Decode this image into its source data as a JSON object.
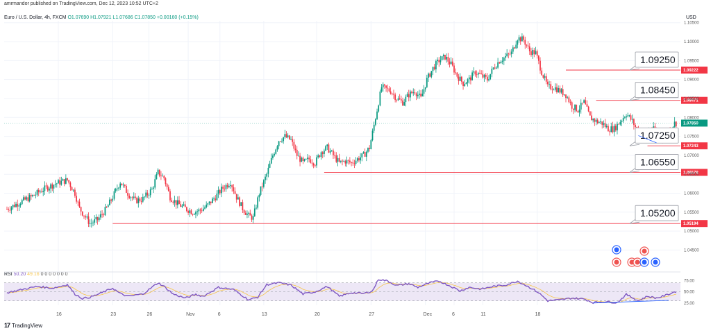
{
  "header": {
    "published": "amrmandor published on TradingView.com, Dec 12, 2023 10:52 UTC+2",
    "symbol": "Euro / U.S. Dollar, 4h, FXCM",
    "ohlc": "O1.07690 H1.07921 L1.07686 C1.07850 +0.00160 (+0.15%)",
    "currency": "USD"
  },
  "rsi_header": {
    "name": "RSI",
    "value": "50.20",
    "ma": "49.16",
    "zeros": "0 0 0 0 0 0 0"
  },
  "brand": {
    "logo": "17",
    "name": "TradingView"
  },
  "colors": {
    "up": "#089981",
    "down": "#f23645",
    "level_line": "#f23645",
    "rsi_line": "#7e57c2",
    "rsi_ma": "#f7c548",
    "divergence": "#2962ff",
    "rsi_band": "#ede7f6"
  },
  "chart_data": [
    {
      "type": "candlestick",
      "title": "Euro / U.S. Dollar, 4h, FXCM",
      "ylim": [
        1.0405,
        1.1055
      ],
      "y_ticks": [
        "1.10500",
        "1.10000",
        "1.09500",
        "1.09000",
        "1.08500",
        "1.08000",
        "1.07500",
        "1.07000",
        "1.06500",
        "1.06000",
        "1.05500",
        "1.05000",
        "1.04500"
      ],
      "x_ticks": [
        "16",
        "23",
        "26",
        "Nov",
        "6",
        "13",
        "20",
        "27",
        "Dec",
        "6",
        "11",
        "18"
      ],
      "close_path": [
        [
          0,
          1.0558
        ],
        [
          8,
          1.0575
        ],
        [
          16,
          1.059
        ],
        [
          24,
          1.061
        ],
        [
          32,
          1.0625
        ],
        [
          40,
          1.0635
        ],
        [
          45,
          1.06
        ],
        [
          48,
          1.056
        ],
        [
          55,
          1.052
        ],
        [
          60,
          1.053
        ],
        [
          66,
          1.056
        ],
        [
          70,
          1.059
        ],
        [
          75,
          1.063
        ],
        [
          80,
          1.06
        ],
        [
          85,
          1.058
        ],
        [
          90,
          1.0585
        ],
        [
          96,
          1.061
        ],
        [
          100,
          1.0655
        ],
        [
          104,
          1.064
        ],
        [
          108,
          1.059
        ],
        [
          112,
          1.0575
        ],
        [
          118,
          1.056
        ],
        [
          123,
          1.055
        ],
        [
          128,
          1.0555
        ],
        [
          132,
          1.0565
        ],
        [
          138,
          1.059
        ],
        [
          142,
          1.061
        ],
        [
          148,
          1.063
        ],
        [
          152,
          1.059
        ],
        [
          156,
          1.056
        ],
        [
          160,
          1.054
        ],
        [
          163,
          1.0535
        ],
        [
          167,
          1.06
        ],
        [
          172,
          1.065
        ],
        [
          176,
          1.07
        ],
        [
          180,
          1.074
        ],
        [
          184,
          1.075
        ],
        [
          188,
          1.074
        ],
        [
          192,
          1.07
        ],
        [
          196,
          1.068
        ],
        [
          200,
          1.069
        ],
        [
          204,
          1.068
        ],
        [
          208,
          1.071
        ],
        [
          212,
          1.072
        ],
        [
          216,
          1.07
        ],
        [
          220,
          1.068
        ],
        [
          224,
          1.0685
        ],
        [
          228,
          1.068
        ],
        [
          232,
          1.069
        ],
        [
          236,
          1.07
        ],
        [
          240,
          1.072
        ],
        [
          244,
          1.08
        ],
        [
          248,
          1.088
        ],
        [
          254,
          1.087
        ],
        [
          258,
          1.085
        ],
        [
          262,
          1.084
        ],
        [
          266,
          1.086
        ],
        [
          270,
          1.087
        ],
        [
          274,
          1.085
        ],
        [
          278,
          1.09
        ],
        [
          282,
          1.093
        ],
        [
          286,
          1.095
        ],
        [
          290,
          1.096
        ],
        [
          294,
          1.094
        ],
        [
          298,
          1.091
        ],
        [
          302,
          1.089
        ],
        [
          306,
          1.09
        ],
        [
          310,
          1.092
        ],
        [
          314,
          1.091
        ],
        [
          318,
          1.09
        ],
        [
          322,
          1.093
        ],
        [
          326,
          1.095
        ],
        [
          330,
          1.096
        ],
        [
          334,
          1.097
        ],
        [
          338,
          1.101
        ],
        [
          342,
          1.1005
        ],
        [
          346,
          1.0975
        ],
        [
          350,
          1.097
        ],
        [
          354,
          1.092
        ],
        [
          358,
          1.088
        ],
        [
          362,
          1.088
        ],
        [
          366,
          1.087
        ],
        [
          370,
          1.086
        ],
        [
          374,
          1.083
        ],
        [
          378,
          1.082
        ],
        [
          382,
          1.084
        ],
        [
          386,
          1.08
        ],
        [
          390,
          1.079
        ],
        [
          394,
          1.0785
        ],
        [
          398,
          1.077
        ],
        [
          402,
          1.077
        ],
        [
          406,
          1.079
        ],
        [
          410,
          1.081
        ],
        [
          414,
          1.079
        ],
        [
          418,
          1.076
        ],
        [
          422,
          1.0755
        ],
        [
          426,
          1.077
        ],
        [
          430,
          1.0765
        ],
        [
          434,
          1.075
        ],
        [
          438,
          1.0765
        ],
        [
          442,
          1.0785
        ]
      ],
      "levels": [
        {
          "price": 1.0925,
          "label": "1.09250",
          "tag": "1.09222"
        },
        {
          "price": 1.0845,
          "label": "1.08450",
          "tag": "1.08471"
        },
        {
          "price": 1.0725,
          "label": "1.07250",
          "tag": "1.07243"
        },
        {
          "price": 1.0655,
          "label": "1.06550",
          "tag": "1.06578"
        },
        {
          "price": 1.052,
          "label": "1.05200",
          "tag": "1.05194"
        }
      ],
      "last_price": "1.07850"
    },
    {
      "type": "line",
      "title": "RSI",
      "ylim": [
        20,
        85
      ],
      "y_ticks": [
        "75.00",
        "50.00",
        "25.00"
      ],
      "band": [
        30,
        70
      ],
      "rsi_path": [
        [
          0,
          48
        ],
        [
          10,
          55
        ],
        [
          20,
          62
        ],
        [
          30,
          58
        ],
        [
          40,
          66
        ],
        [
          45,
          45
        ],
        [
          50,
          35
        ],
        [
          55,
          38
        ],
        [
          60,
          44
        ],
        [
          70,
          58
        ],
        [
          75,
          46
        ],
        [
          80,
          40
        ],
        [
          90,
          45
        ],
        [
          100,
          70
        ],
        [
          104,
          62
        ],
        [
          110,
          45
        ],
        [
          118,
          36
        ],
        [
          125,
          44
        ],
        [
          130,
          40
        ],
        [
          140,
          60
        ],
        [
          150,
          55
        ],
        [
          160,
          32
        ],
        [
          166,
          38
        ],
        [
          172,
          66
        ],
        [
          180,
          70
        ],
        [
          188,
          65
        ],
        [
          196,
          45
        ],
        [
          204,
          50
        ],
        [
          212,
          62
        ],
        [
          220,
          40
        ],
        [
          228,
          48
        ],
        [
          236,
          46
        ],
        [
          242,
          52
        ],
        [
          246,
          78
        ],
        [
          252,
          74
        ],
        [
          258,
          64
        ],
        [
          266,
          68
        ],
        [
          272,
          60
        ],
        [
          280,
          70
        ],
        [
          286,
          74
        ],
        [
          294,
          62
        ],
        [
          300,
          52
        ],
        [
          306,
          60
        ],
        [
          314,
          56
        ],
        [
          322,
          62
        ],
        [
          330,
          65
        ],
        [
          338,
          74
        ],
        [
          346,
          60
        ],
        [
          352,
          48
        ],
        [
          358,
          30
        ],
        [
          366,
          32
        ],
        [
          374,
          36
        ],
        [
          382,
          34
        ],
        [
          388,
          26
        ],
        [
          396,
          28
        ],
        [
          404,
          26
        ],
        [
          410,
          44
        ],
        [
          418,
          30
        ],
        [
          424,
          40
        ],
        [
          430,
          36
        ],
        [
          436,
          42
        ],
        [
          442,
          50
        ]
      ]
    }
  ]
}
